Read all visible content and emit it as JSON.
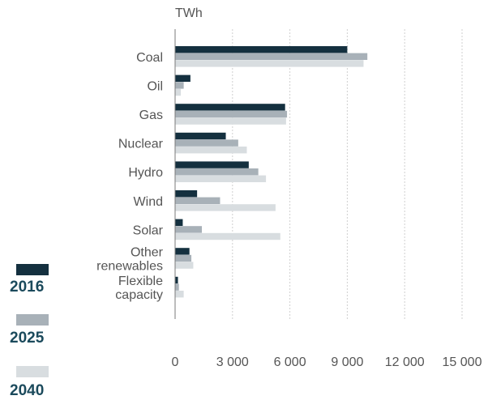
{
  "chart_data": {
    "type": "bar",
    "orientation": "horizontal",
    "unit_label": "TWh",
    "categories": [
      [
        "Coal"
      ],
      [
        "Oil"
      ],
      [
        "Gas"
      ],
      [
        "Nuclear"
      ],
      [
        "Hydro"
      ],
      [
        "Wind"
      ],
      [
        "Solar"
      ],
      [
        "Other",
        "renewables"
      ],
      [
        "Flexible",
        "capacity"
      ]
    ],
    "series": [
      {
        "name": "2016",
        "color": "#14303f",
        "values": [
          9000,
          800,
          5750,
          2650,
          3850,
          1150,
          400,
          750,
          150
        ]
      },
      {
        "name": "2025",
        "color": "#a8b1b8",
        "values": [
          10050,
          450,
          5850,
          3300,
          4350,
          2350,
          1400,
          850,
          200
        ]
      },
      {
        "name": "2040",
        "color": "#d8dde0",
        "values": [
          9850,
          300,
          5800,
          3750,
          4750,
          5250,
          5500,
          950,
          450
        ]
      }
    ],
    "x_ticks": [
      "0",
      "3 000",
      "6 000",
      "9 000",
      "12 000",
      "15 000"
    ],
    "x_tick_values": [
      0,
      3000,
      6000,
      9000,
      12000,
      15000
    ],
    "xlim": [
      0,
      15000
    ],
    "grid": true,
    "legend_position": "bottom-left"
  }
}
